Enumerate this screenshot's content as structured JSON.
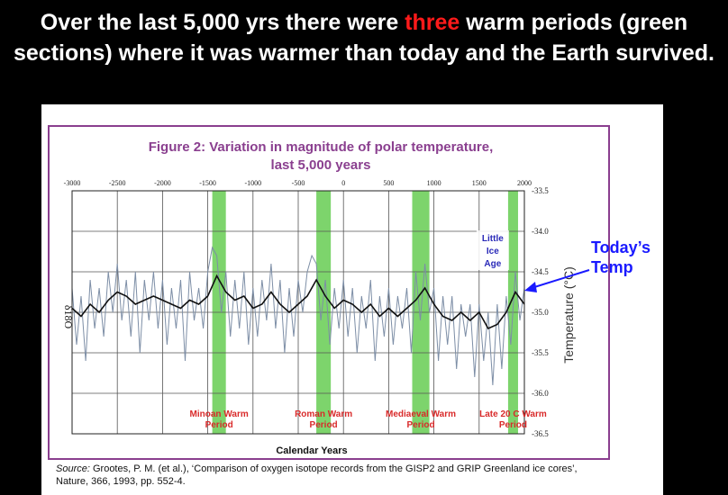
{
  "headline": {
    "part1": "Over the last 5,000 yrs there were ",
    "highlight": "three",
    "part2": " warm periods (green sections) where it was warmer than today and the Earth survived.",
    "highlight_color": "#ff1a1a"
  },
  "callout": {
    "line1": "Today’s",
    "line2": "Temp",
    "color": "#1a1aff"
  },
  "source": {
    "label": "Source:",
    "text": " Grootes, P. M. (et al.), ‘Comparison of oxygen isotope records from the GISP2 and GRIP Greenland ice cores’, Nature, 366, 1993, pp. 552-4."
  },
  "chart_data": {
    "type": "line",
    "title": "Figure 2: Variation in magnitude of polar temperature,",
    "subtitle": "last 5,000 years",
    "xlabel": "Calendar Years",
    "ylabel_left": "δ18O",
    "ylabel_right": "Temperature (°C)",
    "xlim": [
      -3000,
      2000
    ],
    "ylim": [
      -36.5,
      -33.5
    ],
    "x_ticks": [
      -3000,
      -2500,
      -2000,
      -1500,
      -1000,
      -500,
      0,
      500,
      1000,
      1500,
      2000
    ],
    "y_ticks": [
      -33.5,
      -34.0,
      -34.5,
      -35.0,
      -35.5,
      -36.0,
      -36.5
    ],
    "grid": true,
    "warm_periods": [
      {
        "label": "Minoan Warm Period",
        "start": -1450,
        "end": -1300
      },
      {
        "label": "Roman Warm Period",
        "start": -300,
        "end": -140
      },
      {
        "label": "Mediaeval Warm Period",
        "start": 760,
        "end": 950
      },
      {
        "label": "Late 20 C Warm Period",
        "start": 1820,
        "end": 1930
      }
    ],
    "annotation": {
      "text": "Little Ice Age",
      "x": 1650
    },
    "smoothed": {
      "x": [
        -3000,
        -2900,
        -2800,
        -2700,
        -2600,
        -2500,
        -2400,
        -2300,
        -2200,
        -2100,
        -2000,
        -1900,
        -1800,
        -1700,
        -1600,
        -1500,
        -1400,
        -1300,
        -1200,
        -1100,
        -1000,
        -900,
        -800,
        -700,
        -600,
        -500,
        -400,
        -300,
        -200,
        -100,
        0,
        100,
        200,
        300,
        400,
        500,
        600,
        700,
        800,
        900,
        1000,
        1100,
        1200,
        1300,
        1400,
        1500,
        1600,
        1700,
        1800,
        1900,
        2000
      ],
      "values": [
        -34.95,
        -35.05,
        -34.9,
        -35.0,
        -34.85,
        -34.75,
        -34.8,
        -34.9,
        -34.85,
        -34.8,
        -34.85,
        -34.9,
        -34.95,
        -34.85,
        -34.9,
        -34.8,
        -34.55,
        -34.75,
        -34.85,
        -34.8,
        -34.95,
        -34.9,
        -34.75,
        -34.9,
        -35.0,
        -34.9,
        -34.8,
        -34.6,
        -34.8,
        -34.95,
        -34.85,
        -34.9,
        -35.0,
        -34.9,
        -35.05,
        -34.95,
        -35.05,
        -34.95,
        -34.85,
        -34.7,
        -34.9,
        -35.05,
        -35.1,
        -35.0,
        -35.1,
        -35.0,
        -35.2,
        -35.15,
        -35.0,
        -34.75,
        -34.9
      ]
    },
    "raw": {
      "x": [
        -3000,
        -2950,
        -2900,
        -2850,
        -2800,
        -2750,
        -2700,
        -2650,
        -2600,
        -2550,
        -2500,
        -2450,
        -2400,
        -2350,
        -2300,
        -2250,
        -2200,
        -2150,
        -2100,
        -2050,
        -2000,
        -1950,
        -1900,
        -1850,
        -1800,
        -1750,
        -1700,
        -1650,
        -1600,
        -1550,
        -1500,
        -1450,
        -1400,
        -1350,
        -1300,
        -1250,
        -1200,
        -1150,
        -1100,
        -1050,
        -1000,
        -950,
        -900,
        -850,
        -800,
        -750,
        -700,
        -650,
        -600,
        -550,
        -500,
        -450,
        -400,
        -350,
        -300,
        -250,
        -200,
        -150,
        -100,
        -50,
        0,
        50,
        100,
        150,
        200,
        250,
        300,
        350,
        400,
        450,
        500,
        550,
        600,
        650,
        700,
        750,
        800,
        850,
        900,
        950,
        1000,
        1050,
        1100,
        1150,
        1200,
        1250,
        1300,
        1350,
        1400,
        1450,
        1500,
        1550,
        1600,
        1650,
        1700,
        1750,
        1800,
        1850,
        1900,
        1950,
        2000
      ],
      "values": [
        -34.7,
        -35.4,
        -34.8,
        -35.6,
        -34.6,
        -35.2,
        -34.7,
        -35.3,
        -34.5,
        -35.0,
        -34.4,
        -35.1,
        -34.6,
        -35.3,
        -34.5,
        -35.5,
        -34.6,
        -35.1,
        -34.5,
        -35.2,
        -34.6,
        -35.4,
        -34.7,
        -35.2,
        -34.6,
        -35.6,
        -34.5,
        -35.1,
        -34.7,
        -35.2,
        -34.5,
        -34.2,
        -34.3,
        -35.0,
        -34.5,
        -35.3,
        -34.6,
        -35.2,
        -34.5,
        -35.4,
        -34.7,
        -35.3,
        -34.6,
        -35.1,
        -34.4,
        -35.2,
        -34.6,
        -35.5,
        -34.7,
        -35.3,
        -34.6,
        -35.0,
        -34.5,
        -34.3,
        -34.4,
        -35.1,
        -34.6,
        -35.4,
        -34.7,
        -35.2,
        -34.6,
        -35.3,
        -34.7,
        -35.5,
        -34.8,
        -35.2,
        -34.6,
        -35.6,
        -34.8,
        -35.3,
        -34.7,
        -35.4,
        -34.8,
        -35.2,
        -34.7,
        -35.5,
        -34.5,
        -35.1,
        -34.4,
        -35.0,
        -34.7,
        -35.6,
        -34.8,
        -35.4,
        -34.8,
        -35.7,
        -34.9,
        -35.3,
        -34.9,
        -35.8,
        -34.9,
        -35.6,
        -35.0,
        -35.9,
        -34.9,
        -35.7,
        -34.8,
        -35.4,
        -34.5,
        -35.1,
        -34.7
      ]
    }
  }
}
